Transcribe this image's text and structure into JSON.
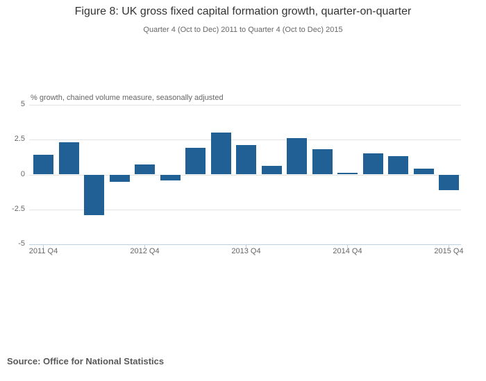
{
  "header": {
    "title": "Figure 8: UK gross fixed capital formation growth, quarter-on-quarter",
    "subtitle": "Quarter 4 (Oct to Dec) 2011 to Quarter 4 (Oct to Dec) 2015"
  },
  "chart_data": {
    "type": "bar",
    "title": "Figure 8: UK gross fixed capital formation growth, quarter-on-quarter",
    "subtitle": "Quarter 4 (Oct to Dec) 2011 to Quarter 4 (Oct to Dec) 2015",
    "unit_label": "% growth, chained volume measure, seasonally adjusted",
    "categories": [
      "2011 Q4",
      "2012 Q1",
      "2012 Q2",
      "2012 Q3",
      "2012 Q4",
      "2013 Q1",
      "2013 Q2",
      "2013 Q3",
      "2013 Q4",
      "2014 Q1",
      "2014 Q2",
      "2014 Q3",
      "2014 Q4",
      "2015 Q1",
      "2015 Q2",
      "2015 Q3",
      "2015 Q4"
    ],
    "values": [
      1.4,
      2.3,
      -2.9,
      -0.5,
      0.7,
      -0.4,
      1.9,
      3.0,
      2.1,
      0.6,
      2.6,
      1.8,
      0.1,
      1.5,
      1.3,
      0.4,
      -1.1
    ],
    "ylim": [
      -5,
      5
    ],
    "yticks": [
      5,
      2.5,
      0,
      -2.5,
      -5
    ],
    "ytick_labels": [
      "5",
      "2.5",
      "0",
      "-2.5",
      "-5"
    ],
    "xticks": [
      {
        "label": "2011 Q4",
        "index": 0
      },
      {
        "label": "2012 Q4",
        "index": 4
      },
      {
        "label": "2013 Q4",
        "index": 8
      },
      {
        "label": "2014 Q4",
        "index": 12
      },
      {
        "label": "2015 Q4",
        "index": 16
      }
    ],
    "grid": true,
    "legend": "none",
    "colors": {
      "bar": "#206095",
      "gridline": "#e2e2e2",
      "axis_line": "#bfd0de",
      "tick_text": "#666666",
      "title_text": "#333333"
    }
  },
  "footer": {
    "source": "Source: Office for National Statistics"
  }
}
